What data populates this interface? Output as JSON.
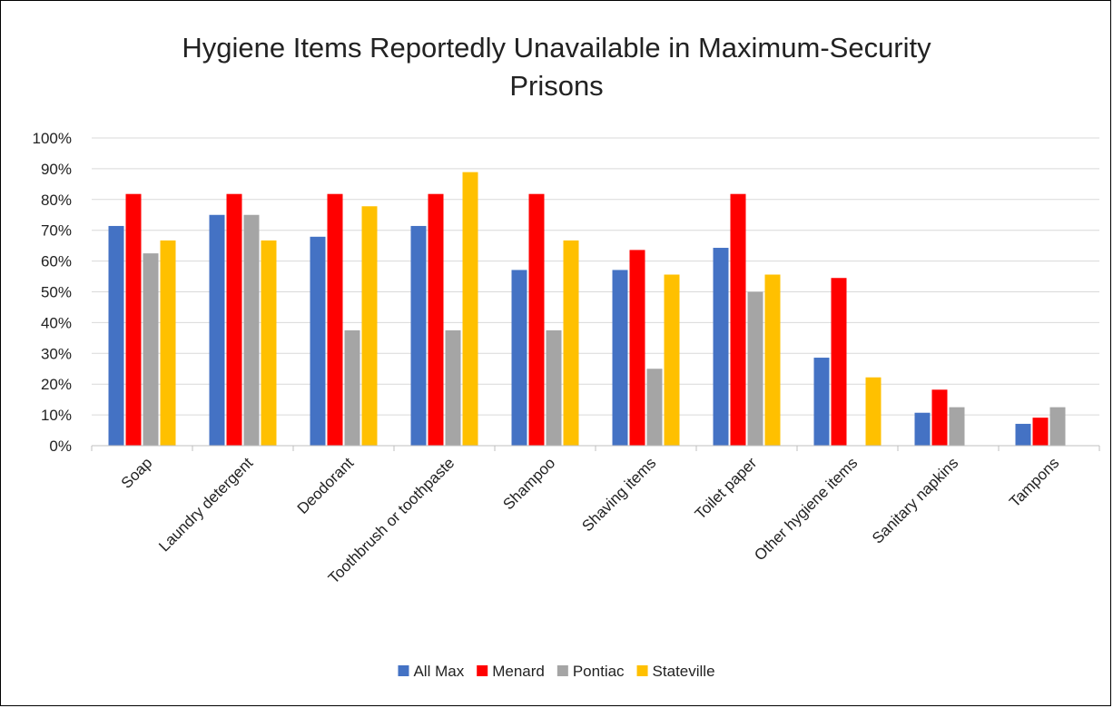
{
  "chart_data": {
    "type": "bar",
    "title": "Hygiene Items Reportedly Unavailable in Maximum-Security Prisons",
    "title_lines": [
      "Hygiene Items Reportedly Unavailable in Maximum-Security",
      "Prisons"
    ],
    "xlabel": "",
    "ylabel": "",
    "ylim": [
      0,
      100
    ],
    "y_unit": "%",
    "y_ticks": [
      0,
      10,
      20,
      30,
      40,
      50,
      60,
      70,
      80,
      90,
      100
    ],
    "y_tick_labels": [
      "0%",
      "10%",
      "20%",
      "30%",
      "40%",
      "50%",
      "60%",
      "70%",
      "80%",
      "90%",
      "100%"
    ],
    "grid": true,
    "legend_position": "bottom",
    "categories": [
      "Soap",
      "Laundry detergent",
      "Deodorant",
      "Toothbrush or toothpaste",
      "Shampoo",
      "Shaving items",
      "Toilet paper",
      "Other hygiene items",
      "Sanitary napkins",
      "Tampons"
    ],
    "series": [
      {
        "name": "All Max",
        "color": "#4472c4",
        "values": [
          71.4,
          75.0,
          67.9,
          71.4,
          57.1,
          57.1,
          64.3,
          28.6,
          10.7,
          7.1
        ]
      },
      {
        "name": "Menard",
        "color": "#ff0000",
        "values": [
          81.8,
          81.8,
          81.8,
          81.8,
          81.8,
          63.6,
          81.8,
          54.5,
          18.2,
          9.1
        ]
      },
      {
        "name": "Pontiac",
        "color": "#a5a5a5",
        "values": [
          62.5,
          75.0,
          37.5,
          37.5,
          37.5,
          25.0,
          50.0,
          0,
          12.5,
          12.5
        ]
      },
      {
        "name": "Stateville",
        "color": "#ffc000",
        "values": [
          66.7,
          66.7,
          77.8,
          88.9,
          66.7,
          55.6,
          55.6,
          22.2,
          0,
          0
        ]
      }
    ]
  }
}
